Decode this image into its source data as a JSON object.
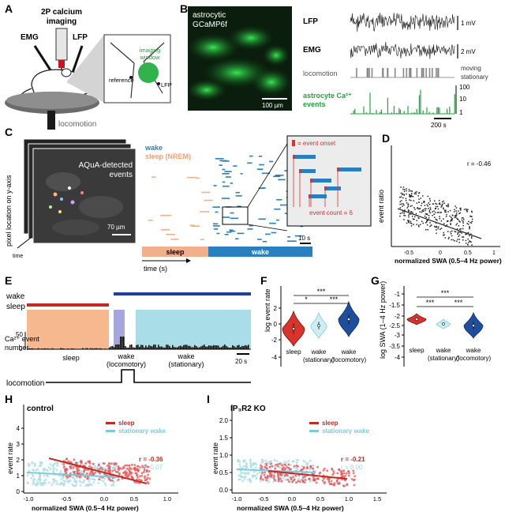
{
  "panels": {
    "A": {
      "letter": "A",
      "imaging": [
        "2P calcium",
        "imaging"
      ],
      "emg": "EMG",
      "lfp": "LFP",
      "window": [
        "imaging",
        "window"
      ],
      "reference": "reference",
      "lfp_small": "LFP",
      "locomotion": "locomotion"
    },
    "B": {
      "letter": "B",
      "image_title": [
        "astrocytic",
        "GCaMP6f"
      ],
      "scalebar": "100 µm",
      "traces": {
        "lfp": {
          "label": "LFP",
          "scale": "1 mV"
        },
        "emg": {
          "label": "EMG",
          "scale": "2 mV"
        },
        "locomotion": {
          "label": "locomotion",
          "state_hi": "moving",
          "state_lo": "stationary"
        },
        "ca": {
          "label": [
            "astrocyte Ca²⁺",
            "events"
          ],
          "ticks": [
            "100",
            "10",
            "1"
          ]
        }
      },
      "timebar": "200 s"
    },
    "C": {
      "letter": "C",
      "ylabel": "pixel location on y-axis",
      "stack_title": [
        "AQuA-detected",
        "events"
      ],
      "scalebar": "70 µm",
      "time_small": "time",
      "legend_wake": "wake",
      "legend_sleep": "sleep (NREM)",
      "inset_onset": "= event onset",
      "inset_count": "event count = 6",
      "timebar": "10 s",
      "seg_sleep": "sleep",
      "seg_wake": "wake",
      "xlabel": "time (s)"
    },
    "D": {
      "letter": "D",
      "ylabel": "event ratio",
      "xlabel": "normalized SWA (0.5–4 Hz power)",
      "r": "r = -0.46",
      "xticks": [
        "-0.5",
        "0",
        "0.5",
        "1"
      ]
    },
    "E": {
      "letter": "E",
      "wake": "wake",
      "sleep": "sleep",
      "ca_label": [
        "Ca²⁺ event",
        "number"
      ],
      "yticks": [
        "50",
        "0"
      ],
      "sleep_lbl": "sleep",
      "wake_loc": [
        "wake",
        "(locomotory)"
      ],
      "wake_stat": [
        "wake",
        "(stationary)"
      ],
      "timebar": "20 s",
      "locomotion": "locomotion"
    },
    "F": {
      "letter": "F",
      "ylabel": "log event rate",
      "yticks": [
        "2",
        "0",
        "-2",
        "-4"
      ],
      "sig": [
        "***",
        "*",
        "***"
      ],
      "xlabels": [
        [
          "sleep"
        ],
        [
          "wake",
          "(stationary)"
        ],
        [
          "wake",
          "(locomotory)"
        ]
      ]
    },
    "G": {
      "letter": "G",
      "ylabel": "log SWA (1–4 Hz power)",
      "yticks": [
        "-1",
        "-1.5",
        "-2",
        "-2.5",
        "-3",
        "-3.5",
        "-4"
      ],
      "sig": [
        "***",
        "***",
        "***"
      ],
      "xlabels": [
        [
          "sleep"
        ],
        [
          "wake",
          "(stationary)"
        ],
        [
          "wake",
          "(locomotory)"
        ]
      ]
    },
    "H": {
      "letter": "H",
      "title": "control",
      "legend": [
        "sleep",
        "stationary wake"
      ],
      "r_sleep": "r = -0.36",
      "r_wake": "r = -0.07",
      "ylabel": "event rate",
      "xlabel": "normalized SWA (0.5–4 Hz power)",
      "yticks": [
        "4",
        "3",
        "2",
        "1",
        "0"
      ],
      "xticks": [
        "-1.0",
        "-0.5",
        "0.0",
        "0.5",
        "1.0"
      ]
    },
    "I": {
      "letter": "I",
      "title": "IP₃R2 KO",
      "legend": [
        "sleep",
        "stationary wake"
      ],
      "r_sleep": "r = -0.21",
      "r_wake": "r = 0.00",
      "ylabel": "event rate",
      "xlabel": "normalized SWA (0.5–4 Hz power)",
      "yticks": [
        "2.0",
        "1.5",
        "1.0",
        "0.5",
        "0.0"
      ],
      "xticks": [
        "-1.0",
        "-0.5",
        "0.0",
        "0.5",
        "1.0",
        "1.5"
      ]
    }
  },
  "colors": {
    "sleep": "#d9342b",
    "sleep_light": "#f2b08a",
    "wake_dark": "#1f4e9e",
    "wake_light": "#a9dde8",
    "green": "#1ea83a",
    "wake_blue": "#2a7fc1"
  }
}
